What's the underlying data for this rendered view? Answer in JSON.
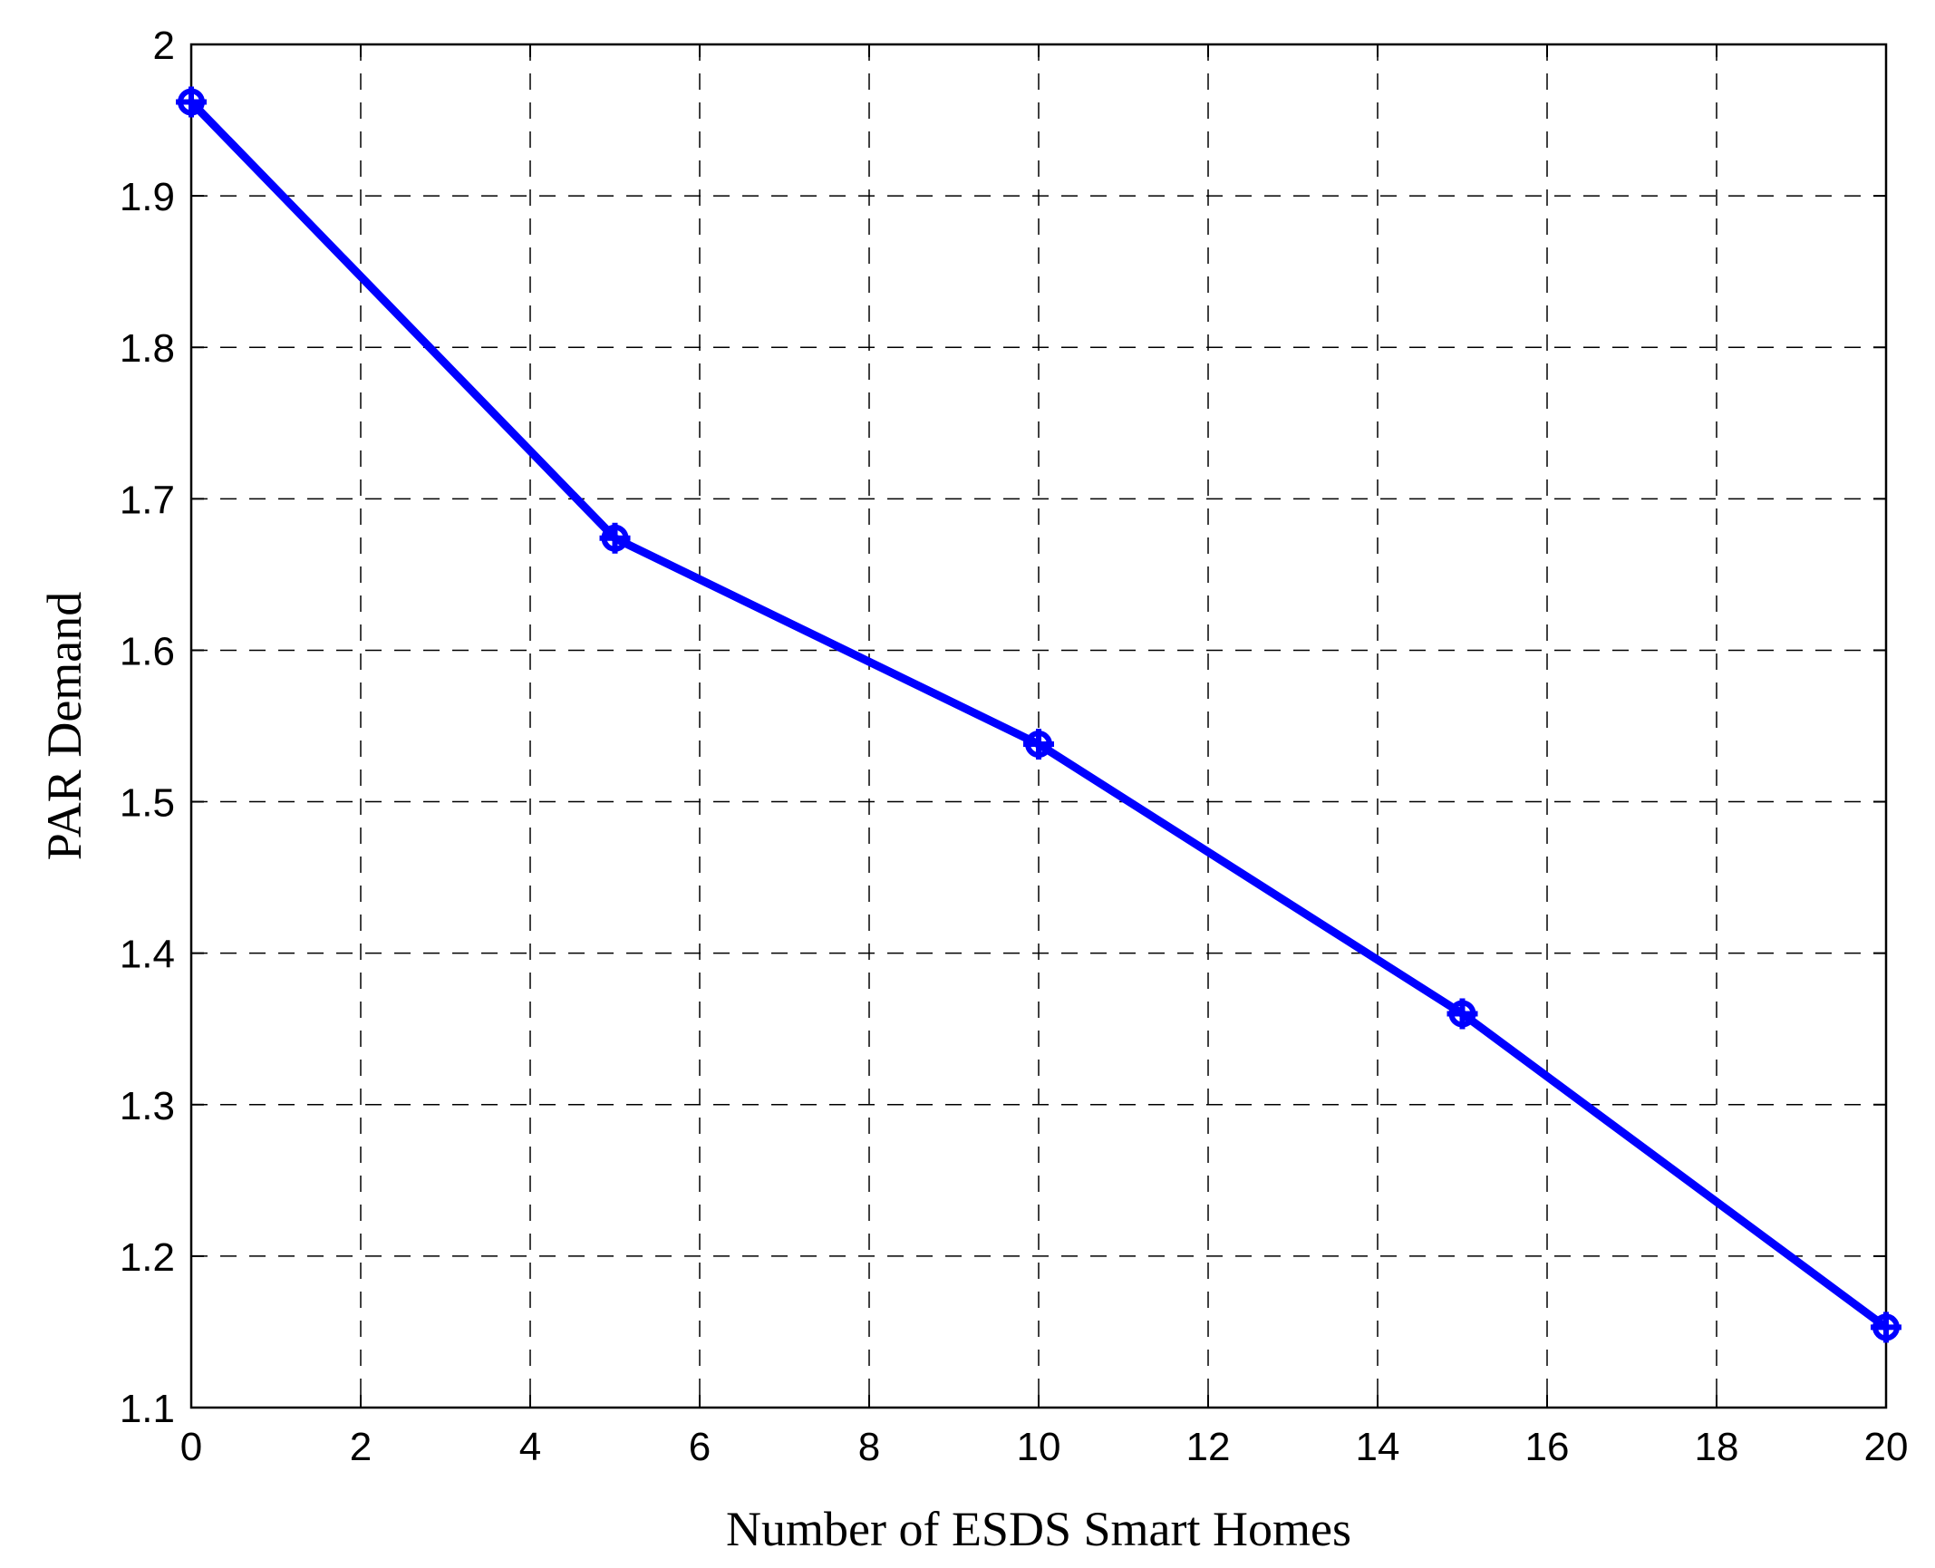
{
  "chart_data": {
    "type": "line",
    "title": "",
    "xlabel": "Number of ESDS Smart Homes",
    "ylabel": "PAR Demand",
    "xlim": [
      0,
      20
    ],
    "ylim": [
      1.1,
      2.0
    ],
    "x_ticks": [
      0,
      2,
      4,
      6,
      8,
      10,
      12,
      14,
      16,
      18,
      20
    ],
    "y_ticks": [
      1.1,
      1.2,
      1.3,
      1.4,
      1.5,
      1.6,
      1.7,
      1.8,
      1.9,
      2.0
    ],
    "x_tick_labels": [
      "0",
      "2",
      "4",
      "6",
      "8",
      "10",
      "12",
      "14",
      "16",
      "18",
      "20"
    ],
    "y_tick_labels": [
      "1.1",
      "1.2",
      "1.3",
      "1.4",
      "1.5",
      "1.6",
      "1.7",
      "1.8",
      "1.9",
      "2"
    ],
    "grid": true,
    "grid_style": "dashed",
    "series": [
      {
        "x": [
          0,
          5,
          10,
          15,
          20
        ],
        "values": [
          1.962,
          1.674,
          1.538,
          1.36,
          1.153
        ],
        "color": "#0000ff",
        "marker": "plus-circle"
      }
    ]
  }
}
